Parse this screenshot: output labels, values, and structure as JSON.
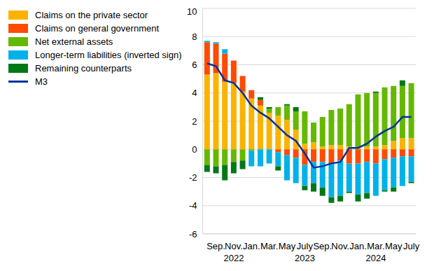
{
  "chart_data": {
    "type": "bar",
    "stacked": true,
    "grid": true,
    "legend": "upper left",
    "categories": [
      null,
      "Sep.",
      null,
      "Nov.",
      null,
      "Jan.",
      null,
      "Mar.",
      null,
      "May",
      null,
      "July",
      null,
      "Sep.",
      null,
      "Nov.",
      null,
      "Jan.",
      null,
      "Mar.",
      null,
      "May",
      null,
      "July"
    ],
    "category_years": [
      null,
      null,
      null,
      "2022",
      null,
      null,
      null,
      null,
      null,
      null,
      null,
      "2023",
      null,
      null,
      null,
      null,
      null,
      null,
      null,
      "2024",
      null,
      null,
      null,
      null
    ],
    "ylim": [
      -6,
      10
    ],
    "yticks": [
      -6,
      -4,
      -2,
      0,
      2,
      4,
      6,
      8,
      10
    ],
    "series": [
      {
        "name": "Claims on the private sector",
        "color": "#fbb300",
        "type": "bar",
        "values": [
          5.3,
          5.4,
          4.8,
          4.7,
          4.1,
          3.6,
          3.1,
          2.6,
          2.4,
          2.1,
          1.4,
          0.4,
          0.5,
          0.2,
          0.3,
          0.3,
          0.2,
          0.1,
          0.2,
          0.2,
          0.3,
          0.6,
          0.8,
          0.8
        ]
      },
      {
        "name": "Claims on general government",
        "color": "#ff4b00",
        "type": "bar",
        "values": [
          2.3,
          2.1,
          2.0,
          1.6,
          1.1,
          0.6,
          0.4,
          0,
          -0.2,
          -0.4,
          -0.6,
          -1.1,
          -0.9,
          -0.9,
          -1.0,
          -0.8,
          -1.0,
          -1.0,
          -0.9,
          -1.0,
          -0.7,
          -0.6,
          -0.5,
          -0.5
        ]
      },
      {
        "name": "Net external assets",
        "color": "#65b800",
        "type": "bar",
        "values": [
          -1.1,
          -1.2,
          -1.1,
          -0.9,
          -0.8,
          -0.1,
          0,
          0.3,
          0.6,
          1.0,
          1.3,
          2.3,
          1.4,
          2.1,
          2.5,
          2.6,
          3.0,
          3.8,
          3.8,
          3.8,
          4.1,
          3.9,
          3.7,
          3.9
        ]
      },
      {
        "name": "Longer-term liabilities (inverted sign)",
        "color": "#00b1ea",
        "type": "bar",
        "values": [
          0.1,
          0.1,
          0.3,
          0,
          0,
          -1.1,
          -1.2,
          -1.0,
          -1.0,
          -1.8,
          -1.8,
          -1.5,
          -1.5,
          -1.8,
          -2.4,
          -2.5,
          -2.0,
          -2.2,
          -2.2,
          -2.3,
          -2.2,
          -2.1,
          -2.1,
          -1.8
        ]
      },
      {
        "name": "Remaining counterparts",
        "color": "#007816",
        "type": "bar",
        "values": [
          -0.5,
          -0.5,
          -1.1,
          -0.8,
          -0.6,
          0,
          0.2,
          0.1,
          -0.3,
          0.1,
          0.3,
          -0.3,
          -0.6,
          -0.6,
          -0.4,
          -0.4,
          -0.1,
          -0.5,
          -0.4,
          0.1,
          -0.1,
          -0.3,
          0.4,
          -0.1
        ]
      },
      {
        "name": "M3",
        "color": "#003299",
        "type": "line",
        "values": [
          6.1,
          5.9,
          4.9,
          4.7,
          4.0,
          3.1,
          2.6,
          2.2,
          1.6,
          1.0,
          0.6,
          -0.3,
          -1.3,
          -1.2,
          -1.0,
          -0.9,
          0.1,
          0.1,
          0.4,
          0.9,
          1.3,
          1.6,
          2.3,
          2.3
        ]
      }
    ]
  }
}
